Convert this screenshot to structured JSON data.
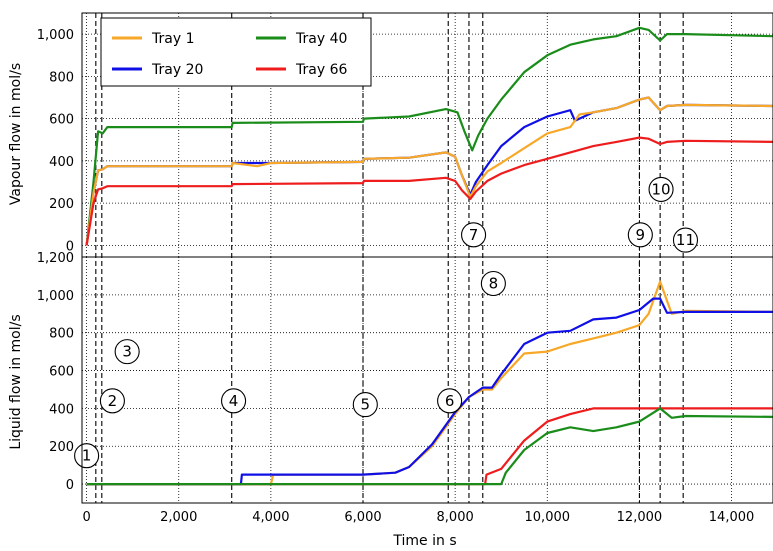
{
  "chart_data": {
    "type": "line",
    "x_axis": {
      "label": "Time in s",
      "range": [
        -100,
        14900
      ],
      "ticks": [
        0,
        2000,
        4000,
        6000,
        8000,
        10000,
        12000,
        14000
      ],
      "tick_labels": [
        "0",
        "2,000",
        "4,000",
        "6,000",
        "8,000",
        "10,000",
        "12,000",
        "14,000"
      ]
    },
    "colors": {
      "Tray 1": "#f7a828",
      "Tray 20": "#1010e6",
      "Tray 40": "#1a8c1a",
      "Tray 66": "#ee1c1c"
    },
    "legend": {
      "position": "top-left",
      "entries": [
        "Tray 1",
        "Tray 20",
        "Tray 40",
        "Tray 66"
      ]
    },
    "event_markers": {
      "x": [
        200,
        330,
        3150,
        6000,
        7850,
        8300,
        8600,
        12000,
        12450,
        12950
      ],
      "labels": [
        {
          "text": "1",
          "x": 0,
          "panel": "liquid",
          "y": 150
        },
        {
          "text": "2",
          "x": 560,
          "panel": "liquid",
          "y": 440
        },
        {
          "text": "3",
          "x": 880,
          "panel": "liquid",
          "y": 700
        },
        {
          "text": "4",
          "x": 3190,
          "panel": "liquid",
          "y": 440
        },
        {
          "text": "5",
          "x": 6050,
          "panel": "liquid",
          "y": 420
        },
        {
          "text": "6",
          "x": 7880,
          "panel": "liquid",
          "y": 440
        },
        {
          "text": "7",
          "x": 8400,
          "panel": "vapour",
          "y": 50
        },
        {
          "text": "8",
          "x": 8830,
          "panel": "liquid",
          "y": 1060
        },
        {
          "text": "9",
          "x": 12020,
          "panel": "vapour",
          "y": 50
        },
        {
          "text": "10",
          "x": 12470,
          "panel": "vapour",
          "y": 265
        },
        {
          "text": "11",
          "x": 13000,
          "panel": "vapour",
          "y": 25
        }
      ]
    },
    "panels": [
      {
        "name": "vapour",
        "ylabel": "Vapour flow in mol/s",
        "ylim": [
          -55,
          1100
        ],
        "yticks": [
          0,
          200,
          400,
          600,
          800,
          1000
        ],
        "ytick_labels": [
          "0",
          "200",
          "400",
          "600",
          "800",
          "1,000"
        ],
        "grid": true,
        "series": [
          {
            "name": "Tray 40",
            "points": [
              [
                0,
                0
              ],
              [
                150,
                300
              ],
              [
                250,
                540
              ],
              [
                350,
                530
              ],
              [
                450,
                560
              ],
              [
                3150,
                560
              ],
              [
                3170,
                580
              ],
              [
                6000,
                585
              ],
              [
                6020,
                600
              ],
              [
                7000,
                610
              ],
              [
                7800,
                645
              ],
              [
                8050,
                630
              ],
              [
                8200,
                540
              ],
              [
                8370,
                450
              ],
              [
                8500,
                520
              ],
              [
                8700,
                600
              ],
              [
                9000,
                690
              ],
              [
                9500,
                820
              ],
              [
                10000,
                900
              ],
              [
                10500,
                950
              ],
              [
                11000,
                975
              ],
              [
                11500,
                990
              ],
              [
                12000,
                1030
              ],
              [
                12200,
                1020
              ],
              [
                12450,
                970
              ],
              [
                12600,
                1000
              ],
              [
                13000,
                1000
              ],
              [
                14900,
                990
              ]
            ]
          },
          {
            "name": "Tray 20",
            "points": [
              [
                0,
                0
              ],
              [
                150,
                250
              ],
              [
                250,
                355
              ],
              [
                350,
                360
              ],
              [
                450,
                375
              ],
              [
                3150,
                375
              ],
              [
                3170,
                390
              ],
              [
                4000,
                390
              ],
              [
                6000,
                395
              ],
              [
                6020,
                410
              ],
              [
                7000,
                415
              ],
              [
                7800,
                440
              ],
              [
                8000,
                420
              ],
              [
                8150,
                330
              ],
              [
                8330,
                240
              ],
              [
                8450,
                300
              ],
              [
                8700,
                380
              ],
              [
                9000,
                470
              ],
              [
                9500,
                560
              ],
              [
                10000,
                610
              ],
              [
                10500,
                640
              ],
              [
                10600,
                590
              ],
              [
                11000,
                630
              ],
              [
                11500,
                650
              ],
              [
                12000,
                690
              ],
              [
                12200,
                700
              ],
              [
                12450,
                640
              ],
              [
                12600,
                660
              ],
              [
                13000,
                665
              ],
              [
                14900,
                660
              ]
            ]
          },
          {
            "name": "Tray 1",
            "points": [
              [
                0,
                0
              ],
              [
                150,
                250
              ],
              [
                250,
                355
              ],
              [
                350,
                360
              ],
              [
                450,
                375
              ],
              [
                3150,
                375
              ],
              [
                3170,
                390
              ],
              [
                3700,
                375
              ],
              [
                4000,
                390
              ],
              [
                6000,
                395
              ],
              [
                6020,
                410
              ],
              [
                7000,
                415
              ],
              [
                7800,
                440
              ],
              [
                8000,
                420
              ],
              [
                8150,
                330
              ],
              [
                8330,
                230
              ],
              [
                8450,
                280
              ],
              [
                8700,
                350
              ],
              [
                9000,
                390
              ],
              [
                9500,
                460
              ],
              [
                10000,
                530
              ],
              [
                10500,
                560
              ],
              [
                10700,
                620
              ],
              [
                11000,
                630
              ],
              [
                11500,
                650
              ],
              [
                12000,
                690
              ],
              [
                12200,
                700
              ],
              [
                12450,
                640
              ],
              [
                12600,
                660
              ],
              [
                13000,
                665
              ],
              [
                14900,
                660
              ]
            ]
          },
          {
            "name": "Tray 66",
            "points": [
              [
                0,
                0
              ],
              [
                150,
                200
              ],
              [
                250,
                265
              ],
              [
                350,
                270
              ],
              [
                450,
                280
              ],
              [
                3150,
                280
              ],
              [
                3170,
                290
              ],
              [
                6000,
                295
              ],
              [
                6020,
                305
              ],
              [
                7000,
                305
              ],
              [
                7800,
                320
              ],
              [
                8000,
                305
              ],
              [
                8150,
                260
              ],
              [
                8330,
                220
              ],
              [
                8450,
                255
              ],
              [
                8700,
                305
              ],
              [
                9000,
                340
              ],
              [
                9500,
                380
              ],
              [
                10000,
                410
              ],
              [
                10500,
                440
              ],
              [
                11000,
                470
              ],
              [
                11500,
                490
              ],
              [
                12000,
                510
              ],
              [
                12200,
                505
              ],
              [
                12450,
                480
              ],
              [
                12600,
                490
              ],
              [
                13000,
                495
              ],
              [
                14900,
                490
              ]
            ]
          }
        ]
      },
      {
        "name": "liquid",
        "ylabel": "Liquid flow in mol/s",
        "ylim": [
          -100,
          1200
        ],
        "yticks": [
          0,
          200,
          400,
          600,
          800,
          1000,
          1200
        ],
        "ytick_labels": [
          "0",
          "200",
          "400",
          "600",
          "800",
          "1,000",
          "1,200"
        ],
        "grid": true,
        "series": [
          {
            "name": "Tray 1",
            "points": [
              [
                0,
                0
              ],
              [
                4000,
                0
              ],
              [
                4050,
                50
              ],
              [
                6000,
                50
              ],
              [
                6700,
                60
              ],
              [
                7000,
                90
              ],
              [
                7500,
                200
              ],
              [
                8000,
                370
              ],
              [
                8300,
                460
              ],
              [
                8600,
                500
              ],
              [
                8800,
                500
              ],
              [
                9000,
                560
              ],
              [
                9500,
                690
              ],
              [
                10000,
                700
              ],
              [
                10500,
                740
              ],
              [
                11000,
                770
              ],
              [
                11500,
                800
              ],
              [
                12000,
                840
              ],
              [
                12200,
                900
              ],
              [
                12450,
                1070
              ],
              [
                12700,
                900
              ],
              [
                13000,
                915
              ],
              [
                14900,
                910
              ]
            ]
          },
          {
            "name": "Tray 20",
            "points": [
              [
                0,
                0
              ],
              [
                3350,
                0
              ],
              [
                3370,
                50
              ],
              [
                6000,
                50
              ],
              [
                6700,
                60
              ],
              [
                7000,
                90
              ],
              [
                7500,
                210
              ],
              [
                8000,
                380
              ],
              [
                8300,
                460
              ],
              [
                8600,
                510
              ],
              [
                8800,
                510
              ],
              [
                9000,
                580
              ],
              [
                9500,
                740
              ],
              [
                10000,
                800
              ],
              [
                10500,
                810
              ],
              [
                11000,
                870
              ],
              [
                11500,
                880
              ],
              [
                12000,
                920
              ],
              [
                12300,
                980
              ],
              [
                12450,
                980
              ],
              [
                12600,
                905
              ],
              [
                13000,
                910
              ],
              [
                14900,
                910
              ]
            ]
          },
          {
            "name": "Tray 66",
            "points": [
              [
                0,
                0
              ],
              [
                8650,
                0
              ],
              [
                8680,
                50
              ],
              [
                9000,
                80
              ],
              [
                9500,
                230
              ],
              [
                10000,
                330
              ],
              [
                10500,
                370
              ],
              [
                11000,
                400
              ],
              [
                12000,
                400
              ],
              [
                12450,
                400
              ],
              [
                14900,
                400
              ]
            ]
          },
          {
            "name": "Tray 40",
            "points": [
              [
                0,
                0
              ],
              [
                9000,
                0
              ],
              [
                9100,
                60
              ],
              [
                9500,
                180
              ],
              [
                10000,
                270
              ],
              [
                10500,
                300
              ],
              [
                11000,
                280
              ],
              [
                11500,
                300
              ],
              [
                12000,
                330
              ],
              [
                12450,
                400
              ],
              [
                12700,
                350
              ],
              [
                13000,
                360
              ],
              [
                14900,
                355
              ]
            ]
          }
        ]
      }
    ]
  }
}
